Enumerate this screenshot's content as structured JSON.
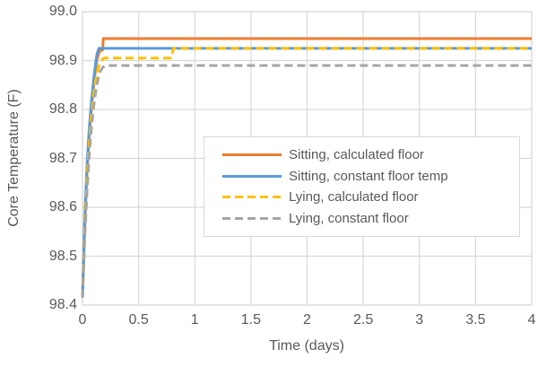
{
  "styles": {
    "background": "#FFFFFF",
    "text_color": "#595959",
    "grid_color": "#D9D9D9",
    "legend_border_color": "#D9D9D9"
  },
  "chart_data": {
    "type": "line",
    "title": "",
    "xlabel": "Time (days)",
    "ylabel": "Core Temperature (F)",
    "xlim": [
      0,
      4
    ],
    "ylim": [
      98.4,
      99.0
    ],
    "grid": true,
    "legend_position": "center-right-box",
    "x_ticks": [
      0,
      0.5,
      1,
      1.5,
      2,
      2.5,
      3,
      3.5,
      4
    ],
    "x_tick_labels": [
      "0",
      "0.5",
      "1",
      "1.5",
      "2",
      "2.5",
      "3",
      "3.5",
      "4"
    ],
    "y_ticks": [
      98.4,
      98.5,
      98.6,
      98.7,
      98.8,
      98.9,
      99.0
    ],
    "y_tick_labels": [
      "98.4",
      "98.5",
      "98.6",
      "98.7",
      "98.8",
      "98.9",
      "99.0"
    ],
    "series": [
      {
        "name": "Sitting, calculated floor",
        "color": "#ED7D31",
        "dashed": false,
        "plateau": 98.94,
        "points": [
          [
            0,
            98.415
          ],
          [
            0.01,
            98.49
          ],
          [
            0.02,
            98.56
          ],
          [
            0.03,
            98.62
          ],
          [
            0.04,
            98.67
          ],
          [
            0.05,
            98.71
          ],
          [
            0.06,
            98.745
          ],
          [
            0.07,
            98.775
          ],
          [
            0.08,
            98.802
          ],
          [
            0.09,
            98.828
          ],
          [
            0.1,
            98.85
          ],
          [
            0.11,
            98.87
          ],
          [
            0.12,
            98.888
          ],
          [
            0.13,
            98.903
          ],
          [
            0.145,
            98.915
          ],
          [
            0.165,
            98.922
          ],
          [
            0.18,
            98.922
          ],
          [
            0.185,
            98.945
          ],
          [
            4,
            98.945
          ]
        ]
      },
      {
        "name": "Sitting, constant floor temp",
        "color": "#5B9BD5",
        "dashed": false,
        "plateau": 98.92,
        "points": [
          [
            0,
            98.415
          ],
          [
            0.01,
            98.5
          ],
          [
            0.02,
            98.575
          ],
          [
            0.03,
            98.635
          ],
          [
            0.04,
            98.685
          ],
          [
            0.05,
            98.725
          ],
          [
            0.06,
            98.76
          ],
          [
            0.07,
            98.79
          ],
          [
            0.08,
            98.817
          ],
          [
            0.09,
            98.84
          ],
          [
            0.1,
            98.862
          ],
          [
            0.11,
            98.882
          ],
          [
            0.12,
            98.9
          ],
          [
            0.13,
            98.914
          ],
          [
            0.145,
            98.925
          ],
          [
            4,
            98.925
          ]
        ]
      },
      {
        "name": "Lying, calculated floor",
        "color": "#FFC000",
        "dashed": true,
        "plateau": 98.92,
        "points": [
          [
            0,
            98.415
          ],
          [
            0.01,
            98.485
          ],
          [
            0.02,
            98.55
          ],
          [
            0.03,
            98.605
          ],
          [
            0.04,
            98.655
          ],
          [
            0.05,
            98.695
          ],
          [
            0.06,
            98.73
          ],
          [
            0.07,
            98.762
          ],
          [
            0.08,
            98.788
          ],
          [
            0.09,
            98.81
          ],
          [
            0.1,
            98.832
          ],
          [
            0.12,
            98.862
          ],
          [
            0.14,
            98.885
          ],
          [
            0.16,
            98.898
          ],
          [
            0.19,
            98.905
          ],
          [
            0.79,
            98.905
          ],
          [
            0.81,
            98.925
          ],
          [
            4,
            98.925
          ]
        ]
      },
      {
        "name": "Lying, constant floor",
        "color": "#A5A5A5",
        "dashed": true,
        "plateau": 98.89,
        "points": [
          [
            0,
            98.415
          ],
          [
            0.01,
            98.475
          ],
          [
            0.02,
            98.535
          ],
          [
            0.03,
            98.585
          ],
          [
            0.04,
            98.63
          ],
          [
            0.05,
            98.67
          ],
          [
            0.06,
            98.705
          ],
          [
            0.07,
            98.737
          ],
          [
            0.08,
            98.763
          ],
          [
            0.09,
            98.786
          ],
          [
            0.1,
            98.806
          ],
          [
            0.12,
            98.84
          ],
          [
            0.14,
            98.863
          ],
          [
            0.16,
            98.878
          ],
          [
            0.18,
            98.886
          ],
          [
            0.21,
            98.89
          ],
          [
            4,
            98.89
          ]
        ]
      }
    ]
  }
}
